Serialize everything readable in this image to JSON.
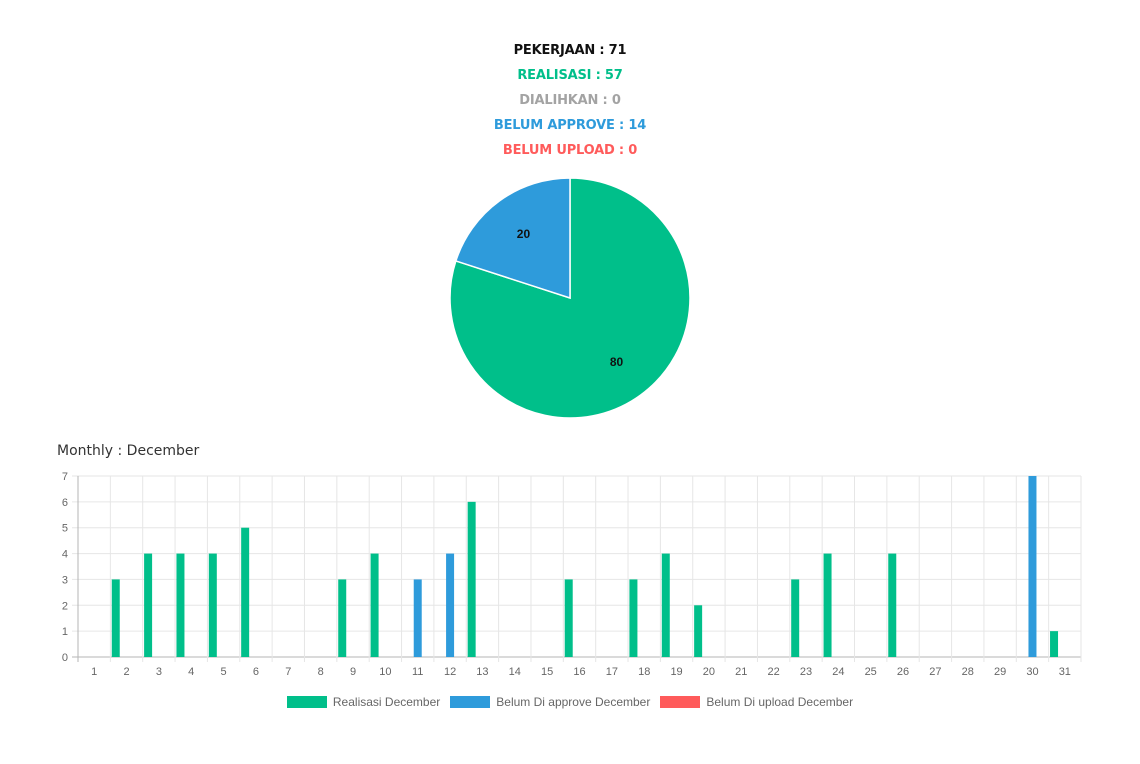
{
  "summary": {
    "pekerjaan": "PEKERJAAN : 71",
    "realisasi": "REALISASI : 57",
    "dialihkan": "DIALIHKAN : 0",
    "belum_approve": "BELUM APPROVE : 14",
    "belum_upload": "BELUM UPLOAD : 0"
  },
  "colors": {
    "green": "#00bf8a",
    "blue": "#2e9bdb",
    "red": "#ff5b5b",
    "gray": "#a3a3a3",
    "black": "#111111"
  },
  "monthly_title": "Monthly : December",
  "chart_data": [
    {
      "type": "pie",
      "slices": [
        {
          "value": 80,
          "label": "80",
          "color": "#00bf8a"
        },
        {
          "value": 20,
          "label": "20",
          "color": "#2e9bdb"
        }
      ]
    },
    {
      "type": "bar",
      "categories": [
        "1",
        "2",
        "3",
        "4",
        "5",
        "6",
        "7",
        "8",
        "9",
        "10",
        "11",
        "12",
        "13",
        "14",
        "15",
        "16",
        "17",
        "18",
        "19",
        "20",
        "21",
        "22",
        "23",
        "24",
        "25",
        "26",
        "27",
        "28",
        "29",
        "30",
        "31"
      ],
      "ylim": [
        0,
        7
      ],
      "yticks": [
        0,
        1,
        2,
        3,
        4,
        5,
        6,
        7
      ],
      "grid": true,
      "legend_position": "bottom",
      "series": [
        {
          "name": "Realisasi December",
          "color": "#00bf8a",
          "values": [
            0,
            3,
            4,
            4,
            4,
            5,
            0,
            0,
            3,
            4,
            0,
            0,
            6,
            0,
            0,
            3,
            0,
            3,
            4,
            2,
            0,
            0,
            3,
            4,
            0,
            4,
            0,
            0,
            0,
            0,
            1
          ]
        },
        {
          "name": "Belum Di approve December",
          "color": "#2e9bdb",
          "values": [
            0,
            0,
            0,
            0,
            0,
            0,
            0,
            0,
            0,
            0,
            3,
            4,
            0,
            0,
            0,
            0,
            0,
            0,
            0,
            0,
            0,
            0,
            0,
            0,
            0,
            0,
            0,
            0,
            0,
            7,
            0
          ]
        },
        {
          "name": "Belum Di upload December",
          "color": "#ff5b5b",
          "values": [
            0,
            0,
            0,
            0,
            0,
            0,
            0,
            0,
            0,
            0,
            0,
            0,
            0,
            0,
            0,
            0,
            0,
            0,
            0,
            0,
            0,
            0,
            0,
            0,
            0,
            0,
            0,
            0,
            0,
            0,
            0
          ]
        }
      ]
    }
  ]
}
